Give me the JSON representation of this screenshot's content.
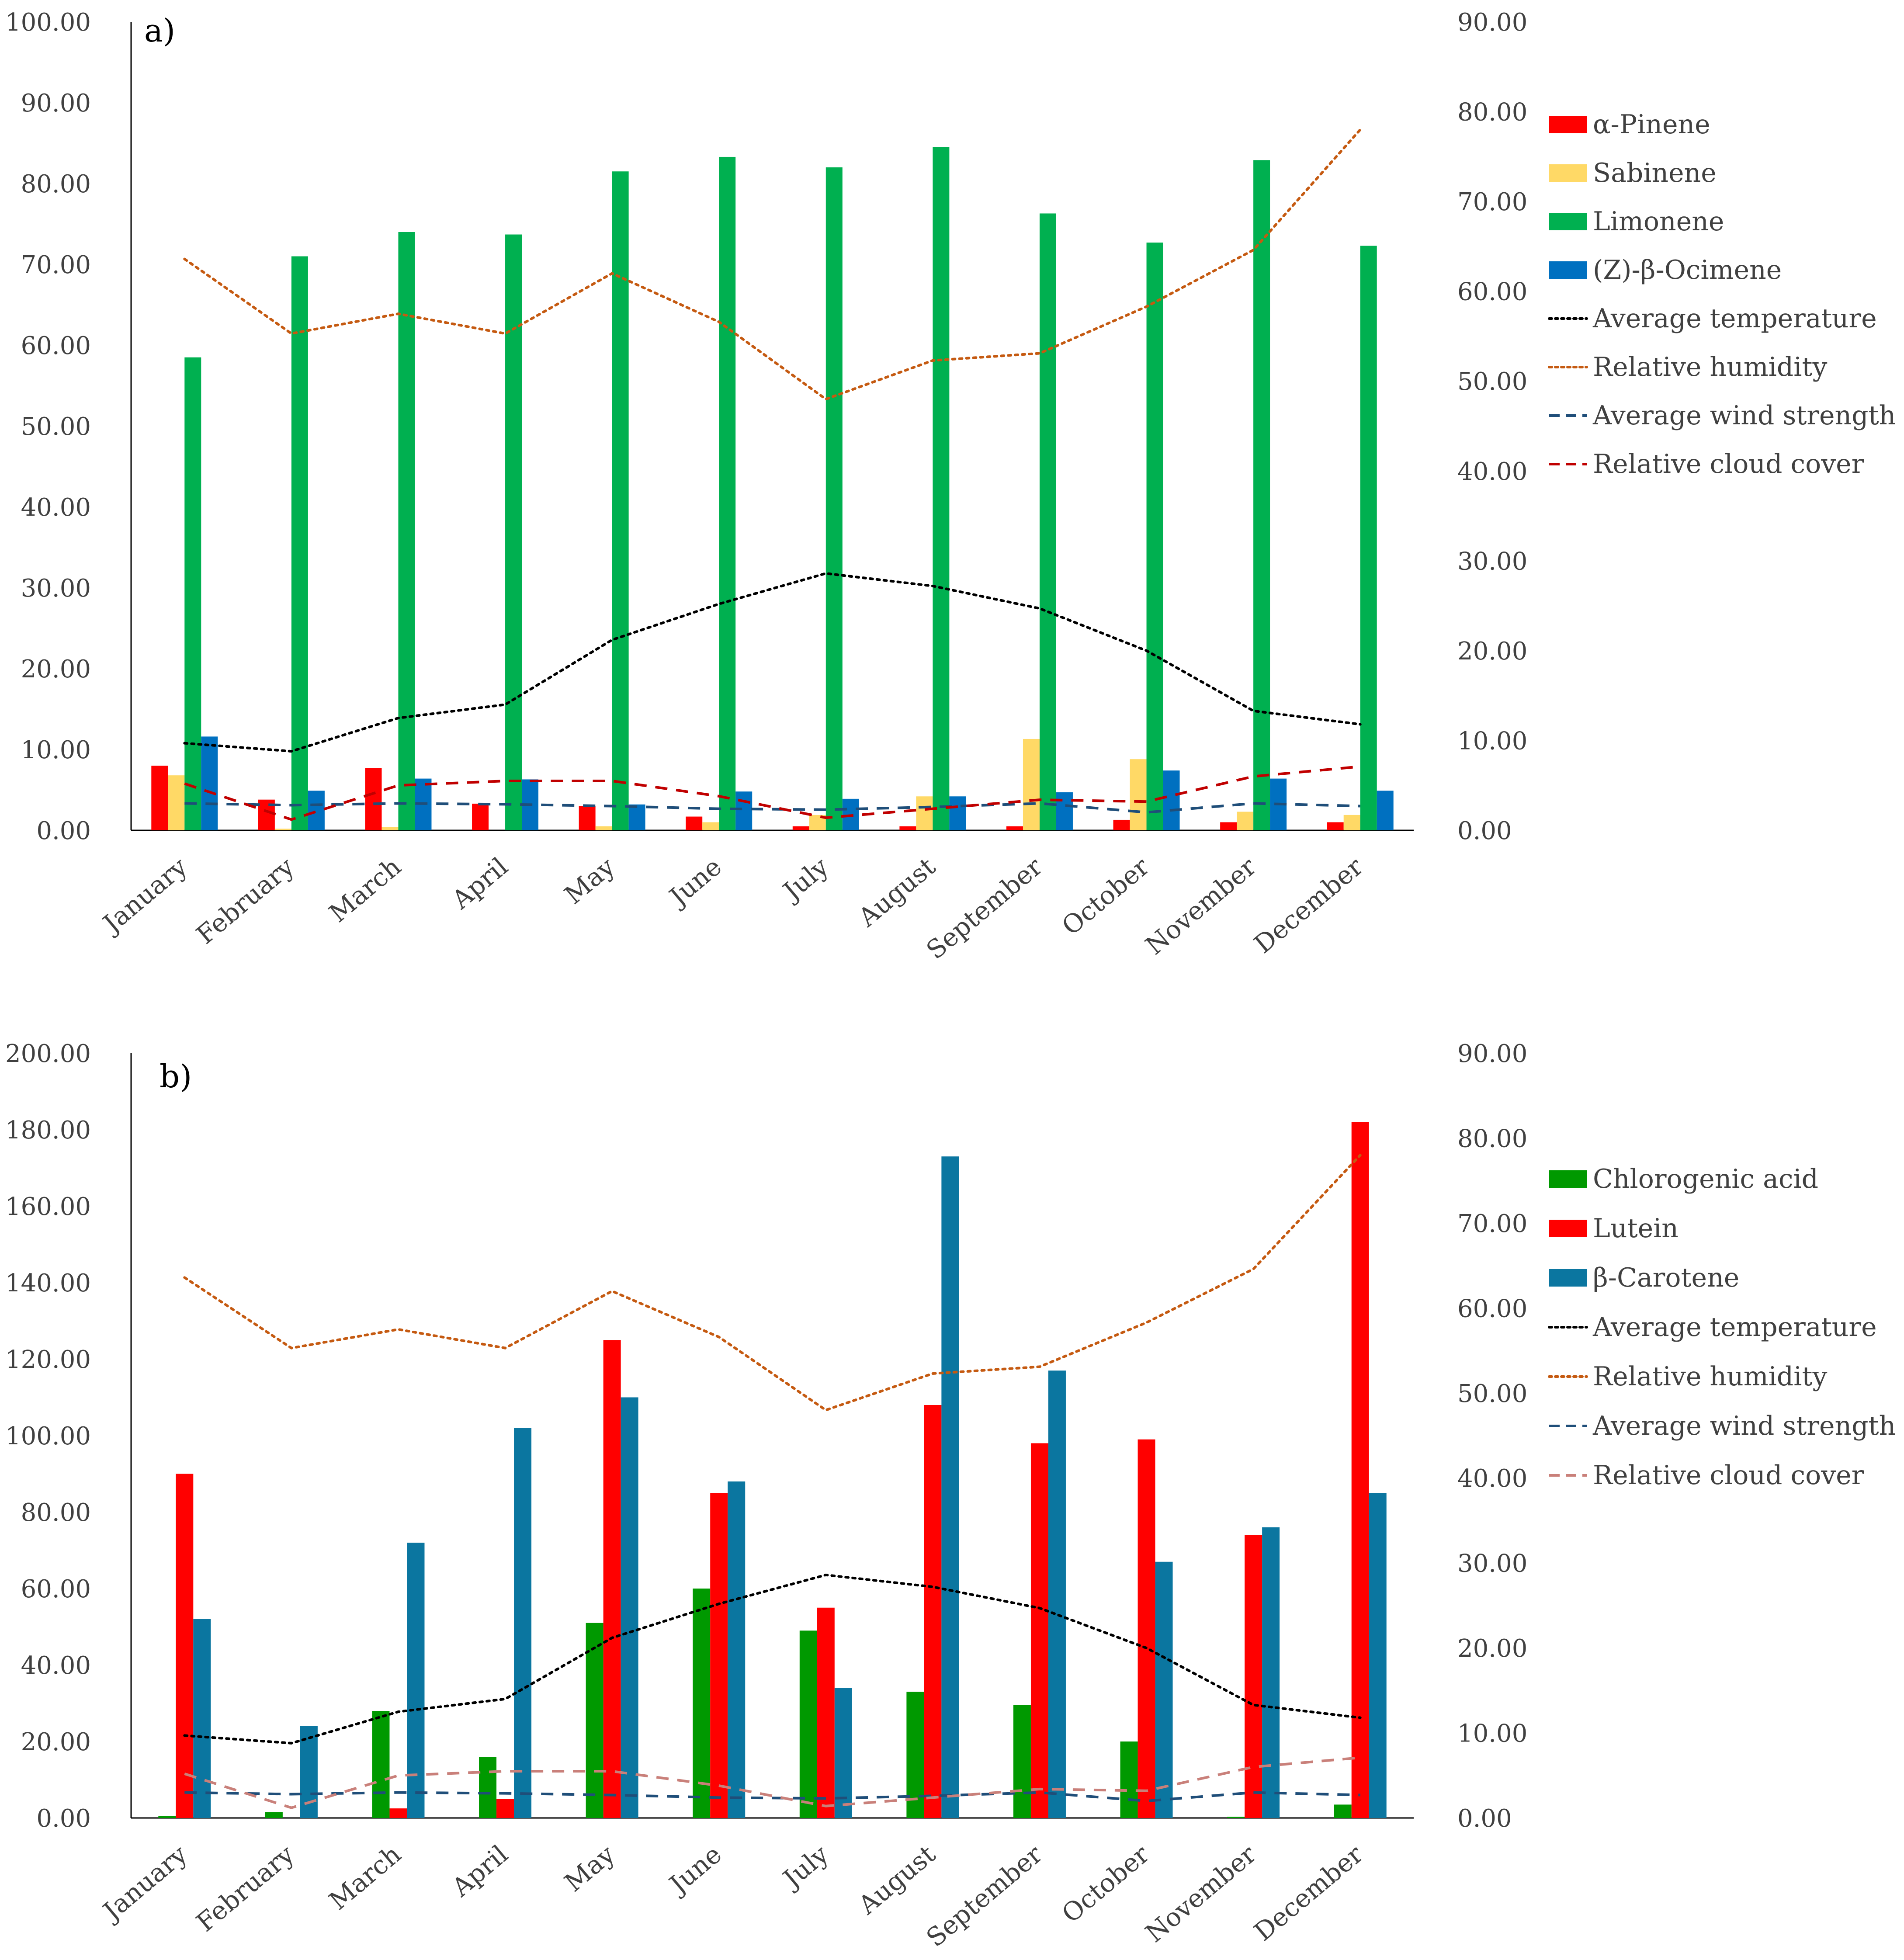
{
  "chart_data": [
    {
      "panel": "a)",
      "type": "bar",
      "title": "",
      "xlabel": "",
      "ylabel": "",
      "ylabel_right": "",
      "categories": [
        "January",
        "February",
        "March",
        "April",
        "May",
        "June",
        "July",
        "August",
        "September",
        "October",
        "November",
        "December"
      ],
      "ylim": [
        0,
        100
      ],
      "y2lim": [
        0,
        90
      ],
      "yticks": [
        "0.00",
        "10.00",
        "20.00",
        "30.00",
        "40.00",
        "50.00",
        "60.00",
        "70.00",
        "80.00",
        "90.00",
        "100.00"
      ],
      "y2ticks": [
        "0.00",
        "10.00",
        "20.00",
        "30.00",
        "40.00",
        "50.00",
        "60.00",
        "70.00",
        "80.00",
        "90.00"
      ],
      "grid": false,
      "legend_position": "right",
      "series": [
        {
          "name": "α-Pinene",
          "kind": "bar",
          "axis": "left",
          "color": "#ff0000",
          "values": [
            8.0,
            3.8,
            7.7,
            3.3,
            3.0,
            1.7,
            0.5,
            0.5,
            0.5,
            1.3,
            1.0,
            1.0
          ]
        },
        {
          "name": "Sabinene",
          "kind": "bar",
          "axis": "left",
          "color": "#ffd966",
          "values": [
            6.8,
            0.2,
            0.4,
            0.0,
            0.5,
            1.0,
            1.9,
            4.2,
            11.3,
            8.8,
            2.3,
            1.9
          ]
        },
        {
          "name": "Limonene",
          "kind": "bar",
          "axis": "left",
          "color": "#00b050",
          "values": [
            58.5,
            71.0,
            74.0,
            73.7,
            81.5,
            83.3,
            82.0,
            84.5,
            76.3,
            72.7,
            82.9,
            72.3
          ]
        },
        {
          "name": "(Z)-β-Ocimene",
          "kind": "bar",
          "axis": "left",
          "color": "#0070c0",
          "values": [
            11.6,
            4.9,
            6.4,
            6.3,
            3.2,
            4.8,
            3.9,
            4.2,
            4.7,
            7.4,
            6.4,
            4.9
          ]
        },
        {
          "name": "Average temperature",
          "kind": "line",
          "axis": "right",
          "dash": "dot-black",
          "color": "#000000",
          "values": [
            9.7,
            8.8,
            12.5,
            14.0,
            21.2,
            25.2,
            28.6,
            27.2,
            24.7,
            20.0,
            13.3,
            11.8
          ]
        },
        {
          "name": "Relative humidity",
          "kind": "line",
          "axis": "right",
          "dash": "dot-orange",
          "color": "#c55a11",
          "values": [
            63.6,
            55.3,
            57.5,
            55.3,
            62.0,
            56.6,
            48.0,
            52.3,
            53.1,
            58.3,
            64.6,
            78.0
          ]
        },
        {
          "name": "Average wind strength",
          "kind": "line",
          "axis": "right",
          "dash": "dash",
          "color": "#1f4e79",
          "values": [
            3.0,
            2.8,
            3.0,
            2.9,
            2.7,
            2.4,
            2.3,
            2.6,
            3.0,
            2.0,
            3.0,
            2.7
          ]
        },
        {
          "name": "Relative cloud cover",
          "kind": "line",
          "axis": "right",
          "dash": "dash",
          "color": "#c00000",
          "values": [
            5.2,
            1.2,
            5.0,
            5.5,
            5.5,
            3.8,
            1.4,
            2.4,
            3.4,
            3.2,
            6.0,
            7.1
          ]
        }
      ]
    },
    {
      "panel": "b)",
      "type": "bar",
      "title": "",
      "xlabel": "",
      "ylabel": "",
      "ylabel_right": "",
      "categories": [
        "January",
        "February",
        "March",
        "April",
        "May",
        "June",
        "July",
        "August",
        "September",
        "October",
        "November",
        "December"
      ],
      "ylim": [
        0,
        200
      ],
      "y2lim": [
        0,
        90
      ],
      "yticks": [
        "0.00",
        "20.00",
        "40.00",
        "60.00",
        "80.00",
        "100.00",
        "120.00",
        "140.00",
        "160.00",
        "180.00",
        "200.00"
      ],
      "y2ticks": [
        "0.00",
        "10.00",
        "20.00",
        "30.00",
        "40.00",
        "50.00",
        "60.00",
        "70.00",
        "80.00",
        "90.00"
      ],
      "grid": false,
      "legend_position": "right",
      "series": [
        {
          "name": "Chlorogenic acid",
          "kind": "bar",
          "axis": "left",
          "color": "#009900",
          "values": [
            0.5,
            1.5,
            28.0,
            16.0,
            51.0,
            60.0,
            49.0,
            33.0,
            29.5,
            20.0,
            0.3,
            3.5
          ]
        },
        {
          "name": "Lutein",
          "kind": "bar",
          "axis": "left",
          "color": "#ff0000",
          "values": [
            90.0,
            0.0,
            2.5,
            5.0,
            125.0,
            85.0,
            55.0,
            108.0,
            98.0,
            99.0,
            74.0,
            182.0
          ]
        },
        {
          "name": "β-Carotene",
          "kind": "bar",
          "axis": "left",
          "color": "#0b76a0",
          "values": [
            52.0,
            24.0,
            72.0,
            102.0,
            110.0,
            88.0,
            34.0,
            173.0,
            117.0,
            67.0,
            76.0,
            85.0
          ]
        },
        {
          "name": "Average temperature",
          "kind": "line",
          "axis": "right",
          "dash": "dot-black",
          "color": "#000000",
          "values": [
            9.7,
            8.8,
            12.5,
            14.0,
            21.2,
            25.2,
            28.6,
            27.2,
            24.7,
            20.0,
            13.3,
            11.8
          ]
        },
        {
          "name": "Relative humidity",
          "kind": "line",
          "axis": "right",
          "dash": "dot-orange",
          "color": "#c55a11",
          "values": [
            63.6,
            55.3,
            57.5,
            55.3,
            62.0,
            56.6,
            48.0,
            52.3,
            53.1,
            58.3,
            64.6,
            78.0
          ]
        },
        {
          "name": "Average wind strength",
          "kind": "line",
          "axis": "right",
          "dash": "dash",
          "color": "#1f4e79",
          "values": [
            3.0,
            2.8,
            3.0,
            2.9,
            2.7,
            2.4,
            2.3,
            2.6,
            3.0,
            2.0,
            3.0,
            2.7
          ]
        },
        {
          "name": "Relative cloud cover",
          "kind": "line",
          "axis": "right",
          "dash": "dash",
          "color": "#c9807a",
          "values": [
            5.2,
            1.2,
            5.0,
            5.5,
            5.5,
            3.8,
            1.4,
            2.4,
            3.4,
            3.2,
            6.0,
            7.1
          ]
        }
      ]
    }
  ]
}
